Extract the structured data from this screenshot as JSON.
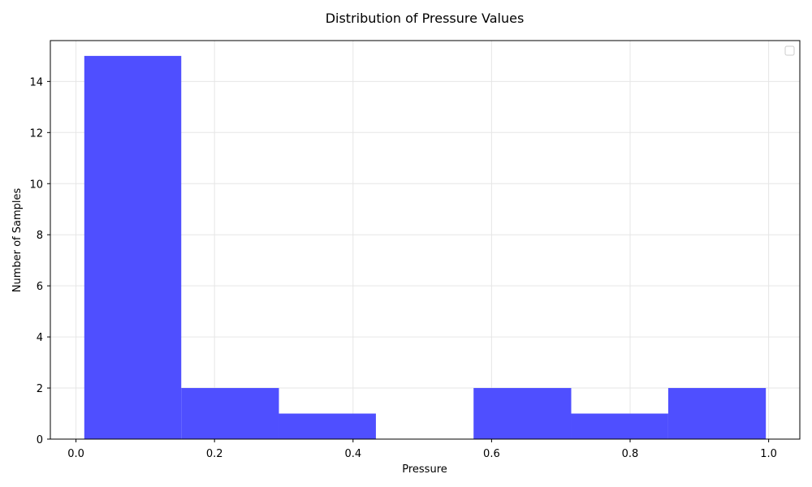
{
  "chart_data": {
    "type": "bar",
    "title": "Distribution of Pressure Values",
    "xlabel": "Pressure",
    "ylabel": "Number of Samples",
    "bin_edges": [
      0.012,
      0.152,
      0.293,
      0.433,
      0.574,
      0.715,
      0.855,
      0.996
    ],
    "counts": [
      15,
      2,
      1,
      0,
      2,
      1,
      2
    ],
    "xlim": [
      -0.037,
      1.045
    ],
    "ylim": [
      0,
      15.6
    ],
    "xticks": [
      0.0,
      0.2,
      0.4,
      0.6,
      0.8,
      1.0
    ],
    "xtick_labels": [
      "0.0",
      "0.2",
      "0.4",
      "0.6",
      "0.8",
      "1.0"
    ],
    "yticks": [
      0,
      2,
      4,
      6,
      8,
      10,
      12,
      14
    ],
    "ytick_labels": [
      "0",
      "2",
      "4",
      "6",
      "8",
      "10",
      "12",
      "14"
    ],
    "bar_color": "#4b4bff",
    "grid": true,
    "legend": {
      "placement": "top-right",
      "entries": []
    }
  }
}
